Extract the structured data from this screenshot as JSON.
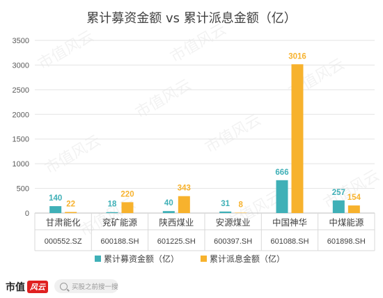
{
  "chart_data": {
    "type": "bar",
    "title": "累计募资金额 vs 累计派息金额（亿）",
    "categories": [
      "甘肃能化",
      "兖矿能源",
      "陕西煤业",
      "安源煤业",
      "中国神华",
      "中煤能源"
    ],
    "codes": [
      "000552.SZ",
      "600188.SH",
      "601225.SH",
      "600397.SH",
      "601088.SH",
      "601898.SH"
    ],
    "series": [
      {
        "name": "累计募资金额（亿）",
        "color": "#3fb0b7",
        "values": [
          140,
          18,
          40,
          31,
          666,
          257
        ]
      },
      {
        "name": "累计派息金额（亿）",
        "color": "#f7b22d",
        "values": [
          22,
          220,
          343,
          8,
          3016,
          154
        ]
      }
    ],
    "ylim": [
      0,
      3500
    ],
    "yticks": [
      0,
      500,
      1000,
      1500,
      2000,
      2500,
      3000,
      3500
    ],
    "grid": true,
    "legend": "bottom"
  },
  "watermark": "市值风云",
  "footer": {
    "logo_text": "市值",
    "logo_mark": "风云",
    "search_placeholder": "买股之前搜一搜"
  },
  "colors": {
    "series1": "#3fb0b7",
    "series2": "#f7b22d"
  }
}
